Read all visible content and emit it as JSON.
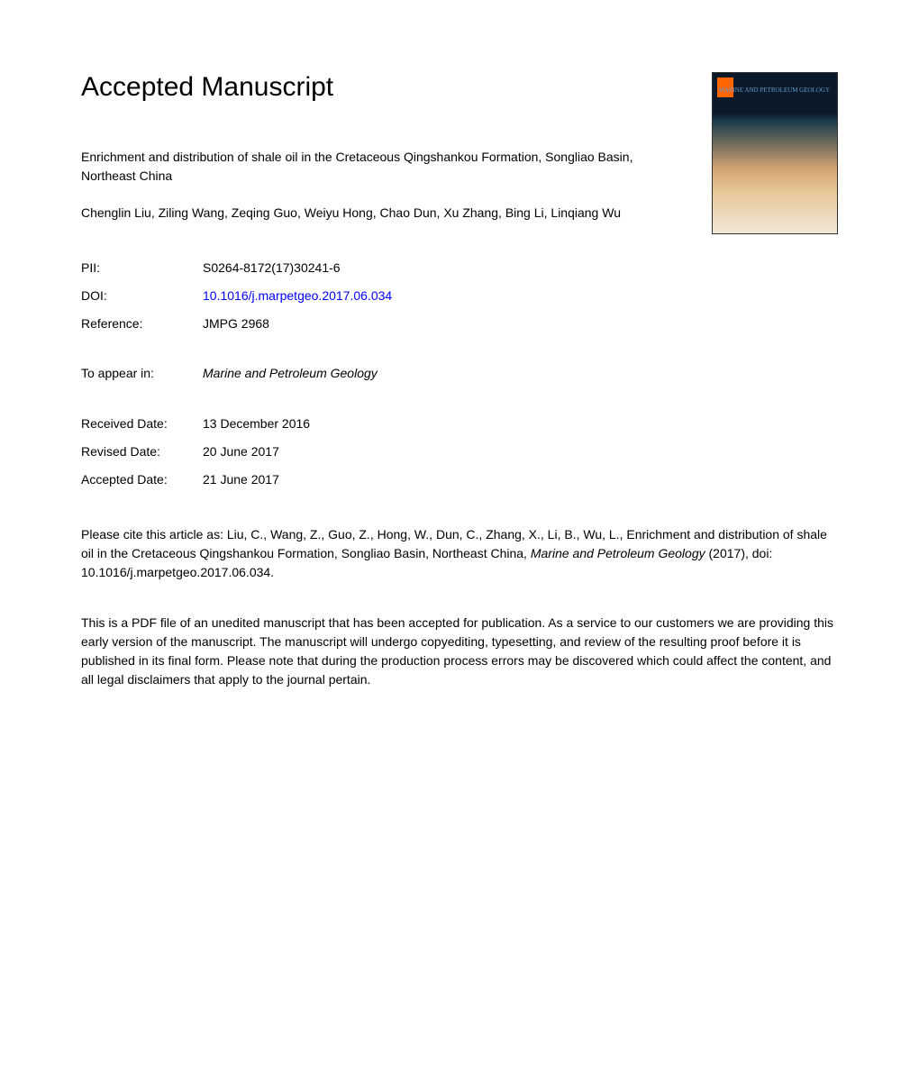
{
  "heading": "Accepted Manuscript",
  "article_title": "Enrichment and distribution of shale oil in the Cretaceous Qingshankou Formation, Songliao Basin, Northeast China",
  "authors": "Chenglin Liu, Ziling Wang, Zeqing Guo, Weiyu Hong, Chao Dun, Xu Zhang, Bing Li, Linqiang Wu",
  "meta": {
    "pii_label": "PII:",
    "pii_value": "S0264-8172(17)30241-6",
    "doi_label": "DOI:",
    "doi_value": "10.1016/j.marpetgeo.2017.06.034",
    "reference_label": "Reference:",
    "reference_value": "JMPG 2968",
    "appear_label": "To appear in:",
    "appear_value": "Marine and Petroleum Geology",
    "received_label": "Received Date:",
    "received_value": "13 December 2016",
    "revised_label": "Revised Date:",
    "revised_value": "20 June 2017",
    "accepted_label": "Accepted Date:",
    "accepted_value": "21 June 2017"
  },
  "citation_prefix": "Please cite this article as: Liu, C., Wang, Z., Guo, Z., Hong, W., Dun, C., Zhang, X., Li, B., Wu, L., Enrichment and distribution of shale oil in the Cretaceous Qingshankou Formation, Songliao Basin, Northeast China, ",
  "citation_journal": "Marine and Petroleum Geology",
  "citation_suffix": " (2017), doi: 10.1016/j.marpetgeo.2017.06.034.",
  "disclaimer": "This is a PDF file of an unedited manuscript that has been accepted for publication. As a service to our customers we are providing this early version of the manuscript. The manuscript will undergo copyediting, typesetting, and review of the resulting proof before it is published in its final form. Please note that during the production process errors may be discovered which could affect the content, and all legal disclaimers that apply to the journal pertain.",
  "cover": {
    "journal_name": "MARINE AND PETROLEUM GEOLOGY"
  },
  "colors": {
    "background": "#ffffff",
    "text": "#000000",
    "link": "#0000ff",
    "cover_dark": "#0a1a2a",
    "cover_orange": "#ff6600"
  }
}
